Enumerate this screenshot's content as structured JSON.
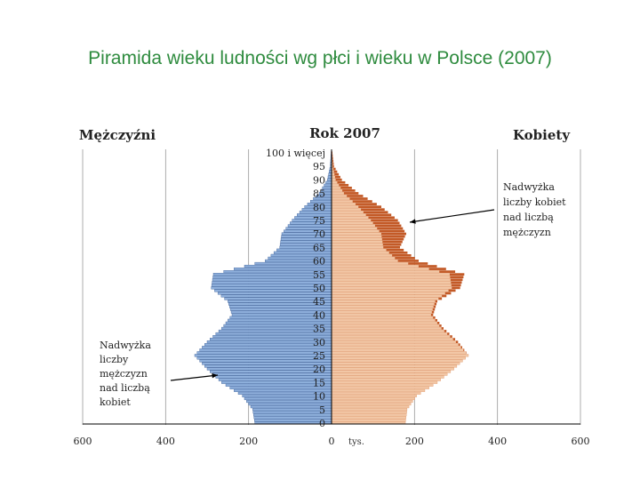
{
  "page": {
    "title": "Piramida wieku ludności wg płci i wieku w Polsce (2007)"
  },
  "chart_data": {
    "type": "bar",
    "orientation": "horizontal-population-pyramid",
    "title": "Rok 2007",
    "left_label": "Mężczyźni",
    "right_label": "Kobiety",
    "unit_label": "tys.",
    "x_ticks": [
      "600",
      "400",
      "200",
      "0",
      "200",
      "400",
      "600"
    ],
    "xlim": [
      -600,
      600
    ],
    "grid": true,
    "y_tick_labels": [
      "0",
      "5",
      "10",
      "15",
      "20",
      "25",
      "30",
      "35",
      "40",
      "45",
      "50",
      "55",
      "60",
      "65",
      "70",
      "75",
      "80",
      "85",
      "90",
      "95",
      "100 i więcej"
    ],
    "age_groups": [
      "0",
      "5",
      "10",
      "15",
      "20",
      "25",
      "30",
      "35",
      "40",
      "45",
      "50",
      "55",
      "60",
      "65",
      "70",
      "75",
      "80",
      "85",
      "90",
      "95",
      "100"
    ],
    "series": [
      {
        "name": "Mężczyźni",
        "values": [
          185,
          190,
          215,
          265,
          300,
          330,
          300,
          265,
          240,
          250,
          290,
          285,
          160,
          125,
          120,
          95,
          65,
          30,
          10,
          3,
          1
        ]
      },
      {
        "name": "Kobiety",
        "values": [
          178,
          182,
          205,
          255,
          295,
          330,
          305,
          270,
          245,
          255,
          310,
          320,
          210,
          165,
          180,
          160,
          120,
          65,
          25,
          6,
          2
        ]
      }
    ],
    "colors": {
      "male": "#8fb0dc",
      "male_dark": "#3d5f96",
      "female": "#f2c7a6",
      "female_excess": "#c35a27",
      "axis": "#000000",
      "grid": "#999999"
    },
    "annotations": [
      {
        "text_lines": [
          "Nadwyżka",
          "liczby",
          "mężczyzn",
          "nad liczbą",
          "kobiet"
        ],
        "side": "left",
        "points_to_age": 17
      },
      {
        "text_lines": [
          "Nadwyżka",
          "liczby kobiet",
          "nad liczbą",
          "mężczyzn"
        ],
        "side": "right",
        "points_to_age": 72
      }
    ]
  }
}
